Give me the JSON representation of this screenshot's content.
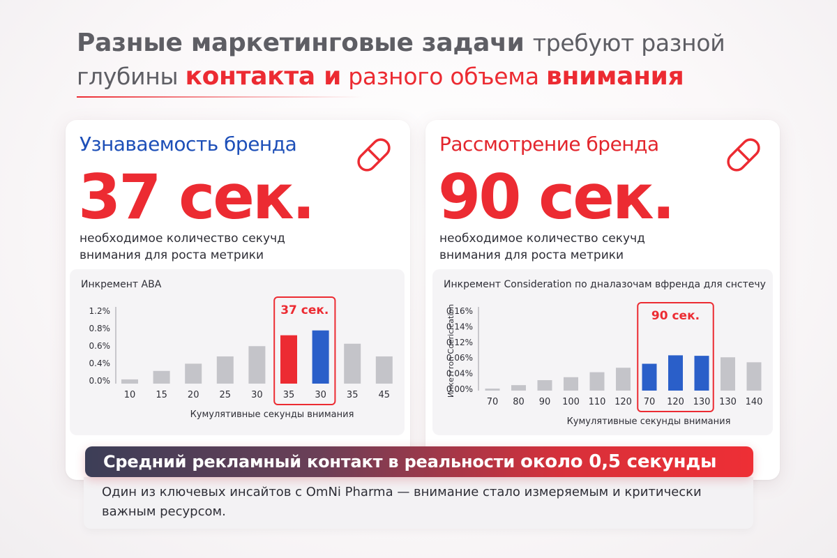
{
  "headline": {
    "part1": "Разные маркетинговые задачи ",
    "part2": "требуют",
    "part3": " разной глубины ",
    "part4": "контакта и",
    "part5": " разного объема ",
    "part6": "внимания"
  },
  "colors": {
    "accent_red": "#ec2b32",
    "accent_blue": "#2a5fc9",
    "bar_gray": "#c4c4c9",
    "title_blue": "#1d4fb8"
  },
  "cards": {
    "left": {
      "title": "Узнаваемость бренда",
      "value": "37 сек.",
      "description": "необходимое количество секучд внимания для роста метрики",
      "icon": "pill-icon"
    },
    "right": {
      "title": "Рассмотрение бренда",
      "value": "90 сек.",
      "description": "необходимое количество секучд внимания для роста метрики",
      "icon": "pill-icon"
    }
  },
  "chart_data": [
    {
      "type": "bar",
      "title": "Инкремент ABA",
      "xlabel": "Кумулятивные секунды внимания",
      "ylabel": "",
      "categories": [
        "10",
        "15",
        "20",
        "25",
        "30",
        "35",
        "30",
        "35",
        "45"
      ],
      "y_tick_labels": [
        "0.0%",
        "0.4%",
        "0.6%",
        "0.8%",
        "1.2%"
      ],
      "ylim": [
        0,
        1.2
      ],
      "values": [
        0.07,
        0.21,
        0.33,
        0.45,
        0.62,
        0.8,
        0.88,
        0.66,
        0.45
      ],
      "bar_colors": [
        "gray",
        "gray",
        "gray",
        "gray",
        "gray",
        "red",
        "blue",
        "gray",
        "gray"
      ],
      "highlight": {
        "label": "37 сек.",
        "from_index": 5,
        "to_index": 6
      },
      "grid": false
    },
    {
      "type": "bar",
      "title": "Инкремент Consideration по дналазочам вфренда для снстечу",
      "xlabel": "Кумулятивные секунды внимания",
      "ylabel": "Инкетгron Coericication",
      "categories": [
        "70",
        "80",
        "90",
        "100",
        "110",
        "120",
        "70",
        "120",
        "130",
        "130",
        "140"
      ],
      "y_tick_labels": [
        "0.00%",
        "0.04%",
        "0.06%",
        "0.12%",
        "0.14%",
        "0.16%"
      ],
      "ylim": [
        0,
        0.16
      ],
      "values": [
        0.004,
        0.011,
        0.021,
        0.027,
        0.037,
        0.046,
        0.054,
        0.071,
        0.07,
        0.067,
        0.057
      ],
      "bar_colors": [
        "gray",
        "gray",
        "gray",
        "gray",
        "gray",
        "gray",
        "blue",
        "blue",
        "blue",
        "gray",
        "gray"
      ],
      "highlight": {
        "label": "90 сек.",
        "from_index": 6,
        "to_index": 8
      },
      "grid": false
    }
  ],
  "banner": {
    "text": "Средний рекламный контакт в реальности ",
    "emphasis": "около 0,5 секунды"
  },
  "insight": {
    "text": "Один из ключевых инсайтов с OmNi Pharma — внимание стало измеряемым и критически важным ресурсом."
  }
}
